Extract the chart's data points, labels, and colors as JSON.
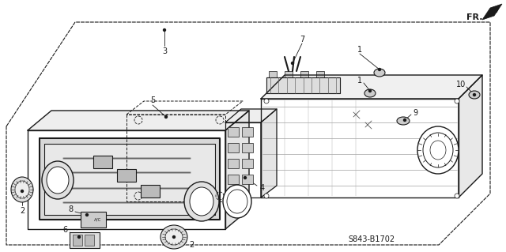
{
  "part_number": "S843-B1702",
  "bg_color": "#ffffff",
  "lc": "#1a1a1a",
  "figsize": [
    6.4,
    3.19
  ],
  "dpi": 100
}
